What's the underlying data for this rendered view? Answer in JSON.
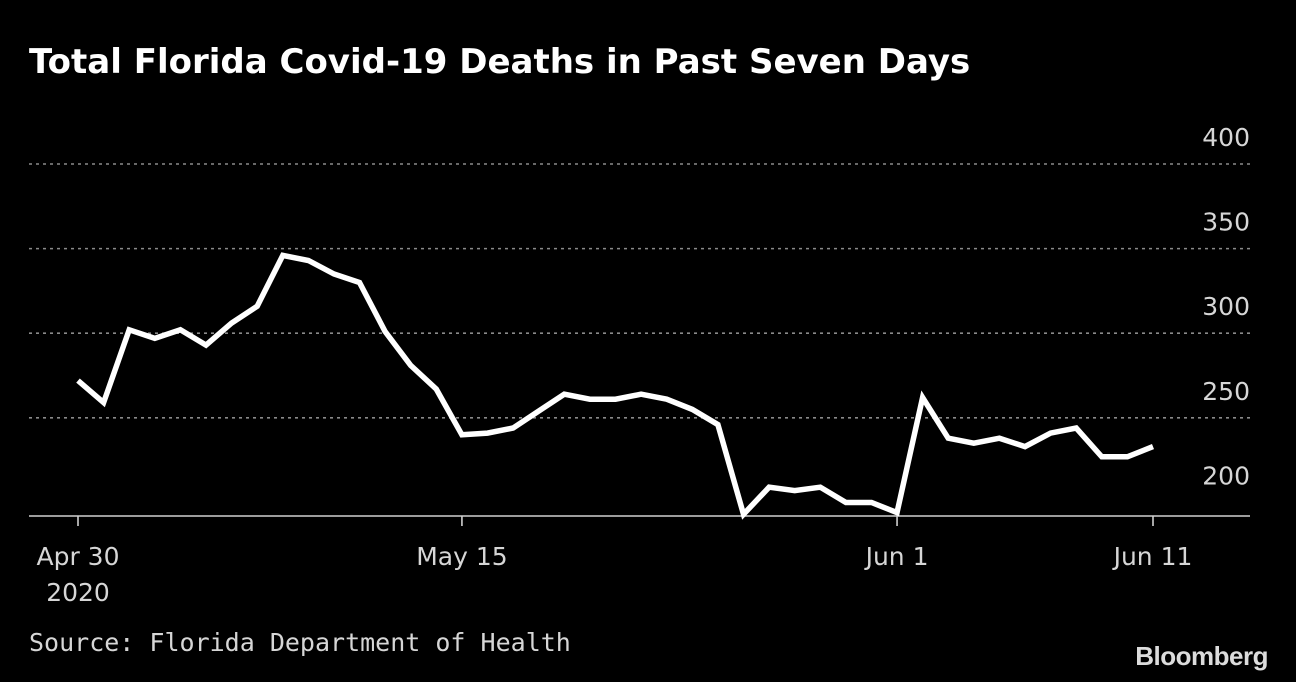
{
  "chart_data": {
    "type": "line",
    "title": "Total Florida Covid-19 Deaths in Past Seven Days",
    "source": "Source: Florida Department of Health",
    "brand": "Bloomberg",
    "xlabel": "",
    "ylabel": "",
    "ylim": [
      192,
      400
    ],
    "yticks": [
      {
        "value": 200,
        "label": "200"
      },
      {
        "value": 250,
        "label": "250"
      },
      {
        "value": 300,
        "label": "300"
      },
      {
        "value": 350,
        "label": "350"
      },
      {
        "value": 400,
        "label": "400"
      }
    ],
    "xticks": [
      {
        "date": "2020-04-30",
        "label": "Apr 30",
        "sublabel": "2020"
      },
      {
        "date": "2020-05-15",
        "label": "May 15",
        "sublabel": ""
      },
      {
        "date": "2020-06-01",
        "label": "Jun 1",
        "sublabel": ""
      },
      {
        "date": "2020-06-11",
        "label": "Jun 11",
        "sublabel": ""
      }
    ],
    "grid": true,
    "x": [
      "2020-04-30",
      "2020-05-01",
      "2020-05-02",
      "2020-05-03",
      "2020-05-04",
      "2020-05-05",
      "2020-05-06",
      "2020-05-07",
      "2020-05-08",
      "2020-05-09",
      "2020-05-10",
      "2020-05-11",
      "2020-05-12",
      "2020-05-13",
      "2020-05-14",
      "2020-05-15",
      "2020-05-16",
      "2020-05-17",
      "2020-05-18",
      "2020-05-19",
      "2020-05-20",
      "2020-05-21",
      "2020-05-22",
      "2020-05-23",
      "2020-05-24",
      "2020-05-25",
      "2020-05-26",
      "2020-05-27",
      "2020-05-28",
      "2020-05-29",
      "2020-05-30",
      "2020-05-31",
      "2020-06-01",
      "2020-06-02",
      "2020-06-03",
      "2020-06-04",
      "2020-06-05",
      "2020-06-06",
      "2020-06-07",
      "2020-06-08",
      "2020-06-09",
      "2020-06-10",
      "2020-06-11"
    ],
    "series": [
      {
        "name": "",
        "color": "#ffffff",
        "values": [
          272,
          259,
          302,
          297,
          302,
          293,
          306,
          316,
          346,
          343,
          335,
          330,
          301,
          281,
          267,
          240,
          241,
          244,
          254,
          264,
          261,
          261,
          264,
          261,
          255,
          246,
          193,
          209,
          207,
          209,
          200,
          200,
          194,
          262,
          238,
          235,
          238,
          233,
          241,
          244,
          227,
          227,
          233
        ]
      }
    ],
    "colors": {
      "background": "#000000",
      "line": "#ffffff",
      "gridline": "#8a8a8a",
      "axis": "#d0d0d0",
      "tick_text": "#d6d6d6"
    }
  }
}
